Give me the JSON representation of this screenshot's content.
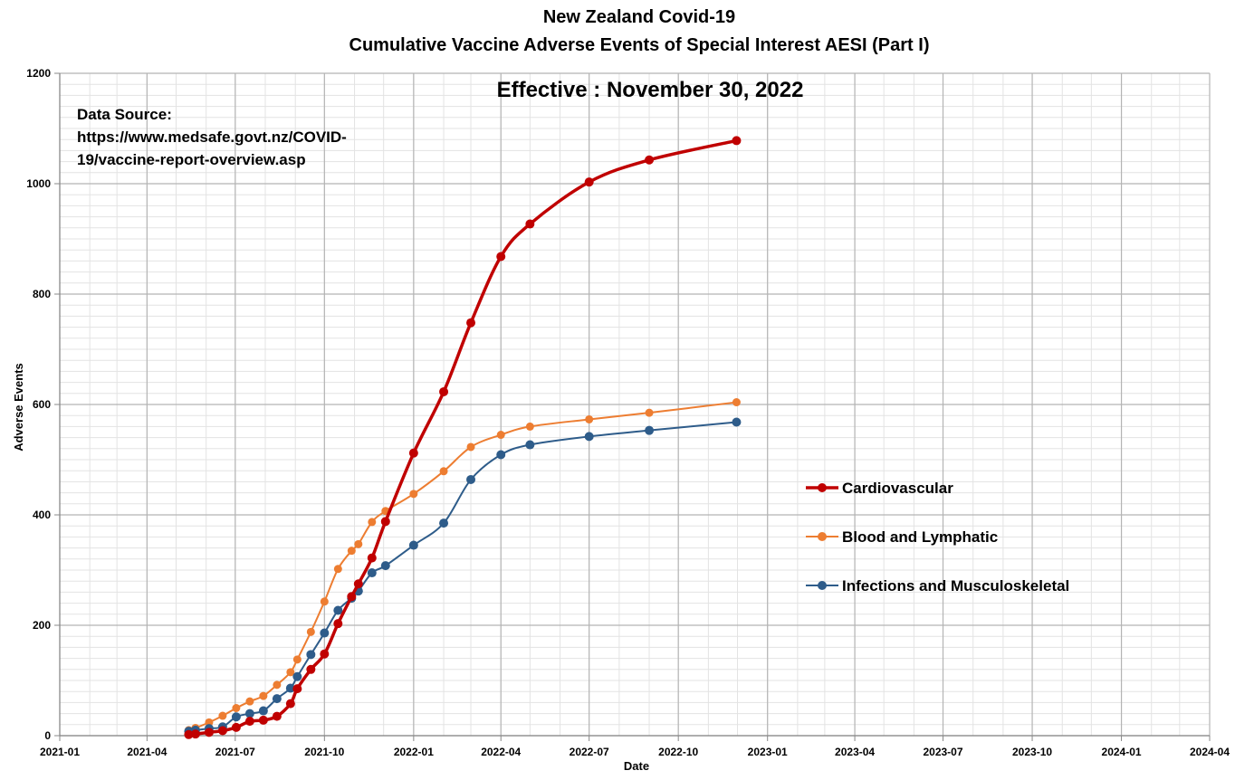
{
  "chart_data": {
    "type": "line",
    "title_lines": [
      "New Zealand Covid-19",
      "Cumulative Vaccine Adverse Events of Special Interest AESI (Part I)"
    ],
    "subtitle": "Effective : November 30, 2022",
    "source_note": [
      "Data Source:",
      "https://www.medsafe.govt.nz/COVID-",
      "19/vaccine-report-overview.asp"
    ],
    "xlabel": "Date",
    "ylabel": "Adverse Events",
    "xlim": [
      "2021-01-01",
      "2024-04-01"
    ],
    "ylim": [
      0,
      1200
    ],
    "x_ticks": [
      "2021-01",
      "2021-04",
      "2021-07",
      "2021-10",
      "2022-01",
      "2022-04",
      "2022-07",
      "2022-10",
      "2023-01",
      "2023-04",
      "2023-07",
      "2023-10",
      "2024-01",
      "2024-04"
    ],
    "y_ticks": [
      0,
      200,
      400,
      600,
      800,
      1000,
      1200
    ],
    "grid": true,
    "legend_position": "right",
    "x": [
      "2021-05-14",
      "2021-05-21",
      "2021-06-04",
      "2021-06-18",
      "2021-07-02",
      "2021-07-16",
      "2021-07-30",
      "2021-08-13",
      "2021-08-27",
      "2021-09-03",
      "2021-09-17",
      "2021-10-01",
      "2021-10-15",
      "2021-10-29",
      "2021-11-05",
      "2021-11-19",
      "2021-12-03",
      "2022-01-01",
      "2022-02-01",
      "2022-03-01",
      "2022-04-01",
      "2022-05-01",
      "2022-07-01",
      "2022-09-01",
      "2022-11-30"
    ],
    "series": [
      {
        "name": "Cardiovascular",
        "color": "#c00000",
        "values": [
          2,
          3,
          6,
          9,
          15,
          26,
          28,
          35,
          58,
          85,
          120,
          148,
          203,
          252,
          275,
          322,
          388,
          512,
          623,
          748,
          868,
          927,
          1003,
          1043,
          1078
        ]
      },
      {
        "name": "Blood and Lymphatic",
        "color": "#ed7d31",
        "values": [
          10,
          14,
          24,
          36,
          50,
          62,
          72,
          92,
          115,
          138,
          188,
          243,
          302,
          335,
          347,
          387,
          407,
          438,
          479,
          523,
          545,
          560,
          573,
          585,
          604
        ]
      },
      {
        "name": "Infections and Musculoskeletal",
        "color": "#2e5c8a",
        "values": [
          8,
          10,
          13,
          16,
          34,
          40,
          45,
          67,
          86,
          107,
          147,
          186,
          227,
          249,
          262,
          295,
          308,
          345,
          385,
          464,
          509,
          527,
          542,
          553,
          568
        ]
      }
    ]
  }
}
